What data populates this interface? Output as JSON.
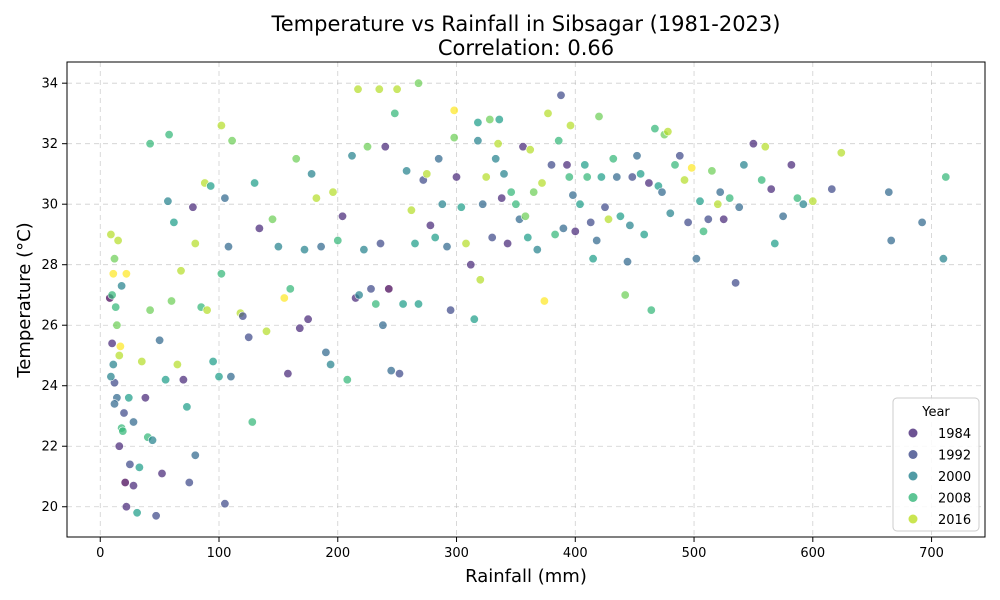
{
  "chart_data": {
    "type": "scatter",
    "title": "Temperature vs Rainfall in Sibsagar (1981-2023)",
    "subtitle": "Correlation: 0.66",
    "xlabel": "Rainfall (mm)",
    "ylabel": "Temperature (°C)",
    "xlim": [
      -28,
      745
    ],
    "ylim": [
      19.0,
      34.7
    ],
    "xticks": [
      0,
      100,
      200,
      300,
      400,
      500,
      600,
      700
    ],
    "yticks": [
      20,
      22,
      24,
      26,
      28,
      30,
      32,
      34
    ],
    "grid": true,
    "legend": {
      "title": "Year",
      "placement": "lower-right",
      "entries": [
        {
          "label": "1984",
          "color": "#482878"
        },
        {
          "label": "1992",
          "color": "#3e4a89"
        },
        {
          "label": "2000",
          "color": "#26828e"
        },
        {
          "label": "2008",
          "color": "#35b779"
        },
        {
          "label": "2016",
          "color": "#bddf26"
        }
      ]
    },
    "colormap": [
      "#440154",
      "#482878",
      "#3e4a89",
      "#31688e",
      "#26828e",
      "#1f9e89",
      "#35b779",
      "#6ece58",
      "#b5de2b",
      "#fde725"
    ],
    "year_range": [
      1981,
      2023
    ],
    "points": [
      [
        8,
        26.9,
        1983
      ],
      [
        10,
        25.4,
        1987
      ],
      [
        12,
        24.1,
        1990
      ],
      [
        14,
        23.6,
        1995
      ],
      [
        16,
        22.0,
        1985
      ],
      [
        18,
        27.3,
        2001
      ],
      [
        20,
        23.1,
        1989
      ],
      [
        22,
        20.0,
        1986
      ],
      [
        25,
        21.4,
        1990
      ],
      [
        28,
        20.7,
        1984
      ],
      [
        31,
        19.8,
        2005
      ],
      [
        18,
        22.6,
        2010
      ],
      [
        12,
        28.2,
        2014
      ],
      [
        9,
        29.0,
        2020
      ],
      [
        15,
        28.8,
        2018
      ],
      [
        22,
        27.7,
        2021
      ],
      [
        10,
        27.0,
        2008
      ],
      [
        14,
        26.0,
        2013
      ],
      [
        11,
        24.7,
        1998
      ],
      [
        9,
        24.3,
        2000
      ],
      [
        17,
        25.3,
        2022
      ],
      [
        12,
        23.4,
        1997
      ],
      [
        19,
        22.5,
        2011
      ],
      [
        24,
        23.6,
        2004
      ],
      [
        28,
        22.8,
        1996
      ],
      [
        33,
        21.3,
        2006
      ],
      [
        21,
        20.8,
        1982
      ],
      [
        13,
        26.6,
        2009
      ],
      [
        16,
        25.0,
        2017
      ],
      [
        11,
        27.7,
        2023
      ],
      [
        35,
        24.8,
        2019
      ],
      [
        38,
        23.6,
        1984
      ],
      [
        40,
        22.3,
        2007
      ],
      [
        44,
        22.2,
        1999
      ],
      [
        47,
        19.7,
        1988
      ],
      [
        42,
        26.5,
        2015
      ],
      [
        50,
        25.5,
        1994
      ],
      [
        55,
        24.2,
        2003
      ],
      [
        52,
        21.1,
        1985
      ],
      [
        60,
        26.8,
        2012
      ],
      [
        65,
        24.7,
        2016
      ],
      [
        70,
        24.2,
        1987
      ],
      [
        73,
        23.3,
        2004
      ],
      [
        75,
        20.8,
        1992
      ],
      [
        68,
        27.8,
        2019
      ],
      [
        80,
        21.7,
        1995
      ],
      [
        85,
        26.6,
        2008
      ],
      [
        90,
        26.5,
        2017
      ],
      [
        95,
        24.8,
        2006
      ],
      [
        100,
        24.3,
        2002
      ],
      [
        105,
        20.1,
        1990
      ],
      [
        110,
        24.3,
        1993
      ],
      [
        42,
        32.0,
        2010
      ],
      [
        58,
        32.3,
        2009
      ],
      [
        62,
        29.4,
        2002
      ],
      [
        57,
        30.1,
        1999
      ],
      [
        80,
        28.7,
        2016
      ],
      [
        78,
        29.9,
        1986
      ],
      [
        88,
        30.7,
        2018
      ],
      [
        93,
        30.6,
        2005
      ],
      [
        102,
        32.6,
        2018
      ],
      [
        105,
        30.2,
        1996
      ],
      [
        111,
        32.1,
        2015
      ],
      [
        108,
        28.6,
        1993
      ],
      [
        102,
        27.7,
        2011
      ],
      [
        118,
        26.4,
        2020
      ],
      [
        120,
        26.3,
        1988
      ],
      [
        125,
        25.6,
        1991
      ],
      [
        128,
        22.8,
        2007
      ],
      [
        130,
        30.7,
        2006
      ],
      [
        134,
        29.2,
        1987
      ],
      [
        140,
        25.8,
        2019
      ],
      [
        145,
        29.5,
        2013
      ],
      [
        150,
        28.6,
        2001
      ],
      [
        155,
        26.9,
        2021
      ],
      [
        158,
        24.4,
        1987
      ],
      [
        160,
        27.2,
        2010
      ],
      [
        165,
        31.5,
        2014
      ],
      [
        168,
        25.9,
        1985
      ],
      [
        172,
        28.5,
        2000
      ],
      [
        175,
        26.2,
        1984
      ],
      [
        178,
        31.0,
        1998
      ],
      [
        182,
        30.2,
        2016
      ],
      [
        186,
        28.6,
        1994
      ],
      [
        190,
        25.1,
        1997
      ],
      [
        194,
        24.7,
        1999
      ],
      [
        196,
        30.4,
        2016
      ],
      [
        200,
        28.8,
        2010
      ],
      [
        204,
        29.6,
        1987
      ],
      [
        208,
        24.2,
        2007
      ],
      [
        212,
        31.6,
        2001
      ],
      [
        215,
        26.9,
        1985
      ],
      [
        218,
        27.0,
        2000
      ],
      [
        222,
        28.5,
        1998
      ],
      [
        225,
        31.9,
        2014
      ],
      [
        228,
        27.2,
        1988
      ],
      [
        232,
        26.7,
        2008
      ],
      [
        236,
        28.7,
        1990
      ],
      [
        238,
        26.0,
        1997
      ],
      [
        240,
        31.9,
        1985
      ],
      [
        243,
        27.2,
        1983
      ],
      [
        245,
        24.5,
        1996
      ],
      [
        248,
        33.0,
        2009
      ],
      [
        252,
        24.4,
        1992
      ],
      [
        255,
        26.7,
        2006
      ],
      [
        258,
        31.1,
        2000
      ],
      [
        262,
        29.8,
        2019
      ],
      [
        265,
        28.7,
        2006
      ],
      [
        268,
        26.7,
        2003
      ],
      [
        272,
        30.8,
        1988
      ],
      [
        275,
        31.0,
        2020
      ],
      [
        278,
        29.3,
        1984
      ],
      [
        282,
        28.9,
        2002
      ],
      [
        285,
        31.5,
        1997
      ],
      [
        288,
        30.0,
        2001
      ],
      [
        292,
        28.6,
        1993
      ],
      [
        295,
        26.5,
        1991
      ],
      [
        298,
        32.2,
        2015
      ],
      [
        300,
        30.9,
        1986
      ],
      [
        304,
        29.9,
        2004
      ],
      [
        308,
        28.7,
        2017
      ],
      [
        312,
        28.0,
        1987
      ],
      [
        315,
        26.2,
        2005
      ],
      [
        318,
        32.1,
        1999
      ],
      [
        320,
        27.5,
        2019
      ],
      [
        322,
        30.0,
        1996
      ],
      [
        325,
        30.9,
        2016
      ],
      [
        328,
        32.8,
        2013
      ],
      [
        330,
        28.9,
        1990
      ],
      [
        333,
        31.5,
        2001
      ],
      [
        335,
        32.0,
        2018
      ],
      [
        338,
        30.2,
        1985
      ],
      [
        340,
        31.0,
        2000
      ],
      [
        343,
        28.7,
        1984
      ],
      [
        346,
        30.4,
        2008
      ],
      [
        350,
        30.0,
        2010
      ],
      [
        353,
        29.5,
        1995
      ],
      [
        356,
        31.9,
        1985
      ],
      [
        358,
        29.6,
        2015
      ],
      [
        360,
        28.9,
        2005
      ],
      [
        362,
        31.8,
        2020
      ],
      [
        365,
        30.4,
        2012
      ],
      [
        368,
        28.5,
        1999
      ],
      [
        372,
        30.7,
        2016
      ],
      [
        374,
        26.8,
        2021
      ],
      [
        377,
        33.0,
        2018
      ],
      [
        380,
        31.3,
        1988
      ],
      [
        383,
        29.0,
        2007
      ],
      [
        386,
        32.1,
        2008
      ],
      [
        388,
        33.6,
        1989
      ],
      [
        390,
        29.2,
        1993
      ],
      [
        393,
        31.3,
        1985
      ],
      [
        395,
        30.9,
        2011
      ],
      [
        398,
        30.3,
        1997
      ],
      [
        400,
        29.1,
        1986
      ],
      [
        404,
        30.0,
        2002
      ],
      [
        408,
        31.3,
        2002
      ],
      [
        410,
        30.9,
        2009
      ],
      [
        413,
        29.4,
        1992
      ],
      [
        415,
        28.2,
        2004
      ],
      [
        418,
        28.8,
        1994
      ],
      [
        420,
        32.9,
        2015
      ],
      [
        422,
        30.9,
        2006
      ],
      [
        425,
        29.9,
        1990
      ],
      [
        428,
        29.5,
        2019
      ],
      [
        432,
        31.5,
        2008
      ],
      [
        435,
        30.9,
        1993
      ],
      [
        438,
        29.6,
        2004
      ],
      [
        442,
        27.0,
        2015
      ],
      [
        444,
        28.1,
        1995
      ],
      [
        446,
        29.3,
        2000
      ],
      [
        448,
        30.9,
        1988
      ],
      [
        452,
        31.6,
        1995
      ],
      [
        455,
        31.0,
        2003
      ],
      [
        458,
        29.0,
        2002
      ],
      [
        462,
        30.7,
        1987
      ],
      [
        464,
        26.5,
        2009
      ],
      [
        467,
        32.5,
        2011
      ],
      [
        470,
        30.6,
        2004
      ],
      [
        473,
        30.4,
        1997
      ],
      [
        475,
        32.3,
        2012
      ],
      [
        478,
        32.4,
        2019
      ],
      [
        480,
        29.7,
        2001
      ],
      [
        484,
        31.3,
        2011
      ],
      [
        488,
        31.6,
        1988
      ],
      [
        492,
        30.8,
        2017
      ],
      [
        495,
        29.4,
        1991
      ],
      [
        498,
        31.2,
        2022
      ],
      [
        502,
        28.2,
        1994
      ],
      [
        505,
        30.1,
        2003
      ],
      [
        508,
        29.1,
        2010
      ],
      [
        512,
        29.5,
        1992
      ],
      [
        515,
        31.1,
        2013
      ],
      [
        520,
        30.0,
        2020
      ],
      [
        522,
        30.4,
        1993
      ],
      [
        525,
        29.5,
        1987
      ],
      [
        530,
        30.2,
        2008
      ],
      [
        535,
        27.4,
        1990
      ],
      [
        538,
        29.9,
        1996
      ],
      [
        542,
        31.3,
        1998
      ],
      [
        550,
        32.0,
        1986
      ],
      [
        557,
        30.8,
        2009
      ],
      [
        560,
        31.9,
        2016
      ],
      [
        565,
        30.5,
        1985
      ],
      [
        568,
        28.7,
        2004
      ],
      [
        575,
        29.6,
        1993
      ],
      [
        582,
        31.3,
        1987
      ],
      [
        587,
        30.2,
        2007
      ],
      [
        592,
        30.0,
        1998
      ],
      [
        600,
        30.1,
        2017
      ],
      [
        616,
        30.5,
        1988
      ],
      [
        624,
        31.7,
        2019
      ],
      [
        664,
        30.4,
        1997
      ],
      [
        666,
        28.8,
        1994
      ],
      [
        692,
        29.4,
        1995
      ],
      [
        710,
        28.2,
        1999
      ],
      [
        712,
        30.9,
        2011
      ],
      [
        235,
        33.8,
        2016
      ],
      [
        217,
        33.8,
        2019
      ],
      [
        250,
        33.8,
        2020
      ],
      [
        268,
        34.0,
        2012
      ],
      [
        298,
        33.1,
        2021
      ],
      [
        318,
        32.7,
        2005
      ],
      [
        396,
        32.6,
        2017
      ],
      [
        336,
        32.8,
        2003
      ]
    ]
  }
}
